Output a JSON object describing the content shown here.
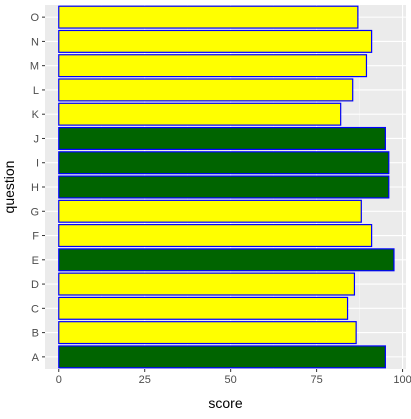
{
  "chart_data": {
    "type": "bar",
    "orientation": "horizontal",
    "xlabel": "score",
    "ylabel": "question",
    "xlim": [
      -4,
      101
    ],
    "x_ticks": [
      0,
      25,
      50,
      75,
      100
    ],
    "grid": true,
    "legend": "none",
    "categories": [
      "A",
      "B",
      "C",
      "D",
      "E",
      "F",
      "G",
      "H",
      "I",
      "J",
      "K",
      "L",
      "M",
      "N",
      "O"
    ],
    "values": [
      95,
      86.5,
      84,
      86,
      97.5,
      91,
      88,
      96,
      96,
      95,
      82,
      85.5,
      89.5,
      91,
      87
    ],
    "highlight": [
      true,
      false,
      false,
      false,
      true,
      false,
      false,
      true,
      true,
      true,
      false,
      false,
      false,
      false,
      false
    ],
    "colors": {
      "panel": "#EBEBEB",
      "grid_major": "#FFFFFF",
      "grid_minor": "#F5F5F5",
      "bar_fill": "#FFFF00",
      "bar_fill_highlight": "#006400",
      "bar_outline": "#0000FF",
      "tick": "#333333"
    }
  }
}
